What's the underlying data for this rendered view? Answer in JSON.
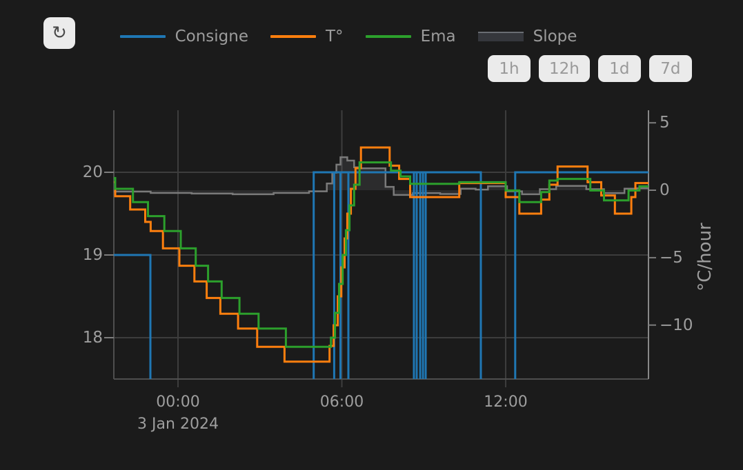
{
  "header": {
    "refresh_icon": "↻",
    "legend": [
      {
        "key": "consigne",
        "label": "Consigne",
        "swatch": "line",
        "color": "#1f77b4"
      },
      {
        "key": "temperature",
        "label": "T°",
        "swatch": "line",
        "color": "#ff7f0e"
      },
      {
        "key": "ema",
        "label": "Ema",
        "swatch": "line",
        "color": "#2ca02c"
      },
      {
        "key": "slope",
        "label": "Slope",
        "swatch": "area",
        "color": "#7a7a7a"
      }
    ],
    "range_buttons": [
      "1h",
      "12h",
      "1d",
      "7d"
    ]
  },
  "colors": {
    "background": "#1b1b1b",
    "consigne": "#1f77b4",
    "temperature": "#ff7f0e",
    "ema": "#2ca02c",
    "slope_line": "#7a7a7a",
    "slope_fill": "rgba(150,150,155,0.14)",
    "grid": "#3d3d3d",
    "axis": "#4f4f4f",
    "right_axis": "#888888",
    "tick_mark": "#7d7d7d",
    "tick_text": "#9e9e9e",
    "button_bg": "#ebebeb",
    "button_text": "#999999"
  },
  "chart_data": {
    "type": "line",
    "title": "",
    "x_axis": {
      "unit": "hours relative to 3 Jan 2024 00:00",
      "range_hours": [
        -2.35,
        17.23
      ],
      "ticks": [
        {
          "t": 0,
          "label": "00:00"
        },
        {
          "t": 6,
          "label": "06:00"
        },
        {
          "t": 12,
          "label": "12:00"
        }
      ],
      "date_label": "3 Jan 2024"
    },
    "y_left": {
      "unit": "°C",
      "range": [
        17.5,
        20.75
      ],
      "ticks": [
        {
          "v": 20,
          "label": "20"
        },
        {
          "v": 19,
          "label": "19"
        },
        {
          "v": 18,
          "label": "18"
        }
      ]
    },
    "y_right": {
      "label": "°C/hour",
      "range": [
        -14.0,
        5.93
      ],
      "ticks": [
        {
          "v": 5,
          "label": "5"
        },
        {
          "v": 0,
          "label": "0"
        },
        {
          "v": -5,
          "label": "−5"
        },
        {
          "v": -10,
          "label": "−10"
        }
      ]
    },
    "legend_position": "top-center",
    "grid": true,
    "series": [
      {
        "key": "consigne",
        "name": "Consigne",
        "axis": "left",
        "style": "step",
        "note": "setpoint; drops below visible range between segments",
        "segments": [
          {
            "from": -2.35,
            "to": -1.01,
            "value": 19.0
          },
          {
            "from": 4.97,
            "to": 11.09,
            "value": 20.0
          },
          {
            "from": 12.35,
            "to": 17.23,
            "value": 20.0
          }
        ],
        "dropouts": [
          5.72,
          5.95,
          6.24,
          8.64,
          8.74,
          8.87,
          8.97,
          9.07
        ]
      },
      {
        "key": "temperature",
        "name": "T°",
        "axis": "left",
        "style": "step",
        "points": [
          [
            -2.35,
            19.88
          ],
          [
            -2.3,
            19.71
          ],
          [
            -1.75,
            19.55
          ],
          [
            -1.2,
            19.4
          ],
          [
            -1.0,
            19.29
          ],
          [
            -0.55,
            19.08
          ],
          [
            0.05,
            18.87
          ],
          [
            0.6,
            18.68
          ],
          [
            1.05,
            18.48
          ],
          [
            1.55,
            18.29
          ],
          [
            2.2,
            18.11
          ],
          [
            2.9,
            17.89
          ],
          [
            3.9,
            17.71
          ],
          [
            5.55,
            17.9
          ],
          [
            5.7,
            18.15
          ],
          [
            5.85,
            18.5
          ],
          [
            5.98,
            18.85
          ],
          [
            6.1,
            19.2
          ],
          [
            6.2,
            19.5
          ],
          [
            6.33,
            19.8
          ],
          [
            6.5,
            20.05
          ],
          [
            6.7,
            20.3
          ],
          [
            7.75,
            20.08
          ],
          [
            8.1,
            19.92
          ],
          [
            8.5,
            19.7
          ],
          [
            10.3,
            19.87
          ],
          [
            12.0,
            19.7
          ],
          [
            12.5,
            19.5
          ],
          [
            13.3,
            19.67
          ],
          [
            13.6,
            19.85
          ],
          [
            13.9,
            20.07
          ],
          [
            15.0,
            19.88
          ],
          [
            15.5,
            19.72
          ],
          [
            16.0,
            19.5
          ],
          [
            16.6,
            19.7
          ],
          [
            16.75,
            19.87
          ]
        ]
      },
      {
        "key": "ema",
        "name": "Ema",
        "axis": "left",
        "style": "step",
        "points": [
          [
            -2.35,
            19.93
          ],
          [
            -2.3,
            19.8
          ],
          [
            -1.65,
            19.64
          ],
          [
            -1.1,
            19.47
          ],
          [
            -0.5,
            19.29
          ],
          [
            0.1,
            19.08
          ],
          [
            0.65,
            18.87
          ],
          [
            1.1,
            18.68
          ],
          [
            1.6,
            18.48
          ],
          [
            2.25,
            18.29
          ],
          [
            2.95,
            18.11
          ],
          [
            3.95,
            17.89
          ],
          [
            5.6,
            18.0
          ],
          [
            5.75,
            18.3
          ],
          [
            5.9,
            18.65
          ],
          [
            6.03,
            19.0
          ],
          [
            6.15,
            19.3
          ],
          [
            6.28,
            19.6
          ],
          [
            6.45,
            19.85
          ],
          [
            6.65,
            20.12
          ],
          [
            7.8,
            20.02
          ],
          [
            8.15,
            19.95
          ],
          [
            8.5,
            19.86
          ],
          [
            10.3,
            19.88
          ],
          [
            12.0,
            19.78
          ],
          [
            12.5,
            19.64
          ],
          [
            13.3,
            19.76
          ],
          [
            13.6,
            19.9
          ],
          [
            13.9,
            19.92
          ],
          [
            15.1,
            19.78
          ],
          [
            15.6,
            19.66
          ],
          [
            16.5,
            19.78
          ],
          [
            16.9,
            19.83
          ]
        ]
      },
      {
        "key": "slope",
        "name": "Slope",
        "axis": "right",
        "style": "step-area",
        "fill_to": 0,
        "points": [
          [
            -2.35,
            -0.1
          ],
          [
            -1.0,
            -0.2
          ],
          [
            0.5,
            -0.25
          ],
          [
            2.0,
            -0.3
          ],
          [
            3.5,
            -0.2
          ],
          [
            4.8,
            -0.08
          ],
          [
            5.45,
            0.5
          ],
          [
            5.65,
            1.3
          ],
          [
            5.8,
            1.9
          ],
          [
            5.95,
            2.45
          ],
          [
            6.2,
            2.2
          ],
          [
            6.45,
            1.7
          ],
          [
            6.6,
            1.62
          ],
          [
            7.6,
            0.25
          ],
          [
            7.9,
            -0.35
          ],
          [
            8.6,
            -0.22
          ],
          [
            9.6,
            -0.28
          ],
          [
            10.35,
            0.12
          ],
          [
            10.9,
            0.05
          ],
          [
            11.35,
            0.3
          ],
          [
            12.05,
            -0.08
          ],
          [
            12.6,
            -0.3
          ],
          [
            13.25,
            0.08
          ],
          [
            13.85,
            0.32
          ],
          [
            14.95,
            0.08
          ],
          [
            15.6,
            -0.22
          ],
          [
            16.35,
            0.12
          ],
          [
            16.8,
            0.15
          ]
        ]
      }
    ]
  }
}
